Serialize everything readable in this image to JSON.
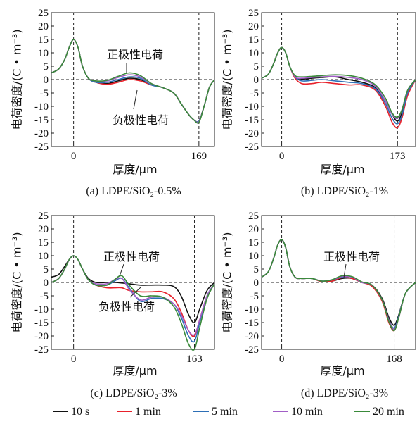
{
  "colors": {
    "10 s": "#111111",
    "1 min": "#e8212b",
    "5 min": "#2d6fb6",
    "10 min": "#a15ec6",
    "20 min": "#3a8a3a"
  },
  "legend": {
    "items": [
      "10 s",
      "1 min",
      "5 min",
      "10 min",
      "20 min"
    ],
    "placement": "bottom"
  },
  "chart_data": [
    {
      "type": "line",
      "caption": "(a)  LDPE/SiO₂-0.5%",
      "xlabel": "厚度/μm",
      "ylabel": "电荷密度/(C • m⁻³)",
      "ylim": [
        -25,
        25
      ],
      "yticks": [
        -25,
        -20,
        -15,
        -10,
        -5,
        0,
        5,
        10,
        15,
        20,
        25
      ],
      "xlim": [
        -30,
        190
      ],
      "xticks": [
        0,
        169
      ],
      "grid": false,
      "annotations": [
        "正极性电荷",
        "负极性电荷"
      ],
      "x": [
        -30,
        -20,
        -12,
        -6,
        0,
        6,
        12,
        20,
        30,
        45,
        60,
        75,
        90,
        105,
        120,
        135,
        145,
        155,
        162,
        169,
        176,
        183,
        190
      ],
      "series": [
        {
          "name": "10 s",
          "values": [
            2.5,
            4,
            7.5,
            12,
            15,
            12,
            5,
            0.5,
            -1,
            -1.5,
            -0.5,
            0.5,
            0,
            -2,
            -3,
            -5,
            -9,
            -13,
            -15,
            -15.5,
            -10,
            -3,
            0
          ]
        },
        {
          "name": "1 min",
          "values": [
            2.5,
            4,
            7.5,
            12,
            15,
            12,
            5,
            0.5,
            -1,
            -1.8,
            -1,
            0,
            -0.5,
            -2,
            -3,
            -5,
            -9,
            -13,
            -15,
            -15.5,
            -10,
            -3,
            0
          ]
        },
        {
          "name": "5 min",
          "values": [
            2.5,
            4,
            7.5,
            12,
            15,
            12,
            5,
            0.5,
            -1,
            -1,
            0,
            1,
            0.5,
            -2,
            -3,
            -5,
            -9,
            -13,
            -15,
            -15.5,
            -10,
            -3,
            0
          ]
        },
        {
          "name": "10 min",
          "values": [
            2.5,
            4,
            7.5,
            12,
            15,
            12,
            5,
            0.5,
            -0.5,
            -0.5,
            0.8,
            1.8,
            1,
            -1.5,
            -3,
            -5,
            -9,
            -13,
            -15,
            -15.8,
            -10,
            -3,
            0
          ]
        },
        {
          "name": "20 min",
          "values": [
            2.5,
            4,
            7.5,
            12,
            15,
            12,
            5,
            0.5,
            -0.5,
            -0.3,
            1.2,
            2.5,
            1.5,
            -1.5,
            -3,
            -5,
            -9,
            -13,
            -15,
            -16,
            -10,
            -3,
            0
          ]
        }
      ]
    },
    {
      "type": "line",
      "caption": "(b)  LDPE/SiO₂-1%",
      "xlabel": "厚度/μm",
      "ylabel": "电荷密度/(C • m⁻³)",
      "ylim": [
        -25,
        25
      ],
      "yticks": [
        -25,
        -20,
        -15,
        -10,
        -5,
        0,
        5,
        10,
        15,
        20,
        25
      ],
      "xlim": [
        -30,
        200
      ],
      "xticks": [
        0,
        173
      ],
      "grid": false,
      "annotations": [],
      "x": [
        -30,
        -20,
        -12,
        -6,
        0,
        6,
        12,
        20,
        30,
        45,
        60,
        80,
        100,
        120,
        140,
        155,
        165,
        173,
        180,
        188,
        200
      ],
      "series": [
        {
          "name": "10 s",
          "values": [
            0.5,
            2,
            6,
            10,
            12,
            10,
            5,
            1,
            0.2,
            0.5,
            0.8,
            1,
            0,
            -1,
            -3,
            -8,
            -13,
            -15.5,
            -12,
            -5,
            0
          ]
        },
        {
          "name": "1 min",
          "values": [
            0.5,
            2,
            6,
            10,
            12,
            10,
            5,
            0.5,
            -1.5,
            -1.5,
            -1,
            -1.5,
            -2,
            -2,
            -4,
            -10,
            -16,
            -18,
            -14,
            -6,
            0
          ]
        },
        {
          "name": "5 min",
          "values": [
            0.5,
            2,
            6,
            10,
            12,
            10,
            5,
            1,
            -0.5,
            -0.3,
            0,
            -0.5,
            -1,
            -1.5,
            -3.5,
            -9,
            -14.5,
            -16.5,
            -13,
            -5,
            0
          ]
        },
        {
          "name": "10 min",
          "values": [
            0.5,
            2,
            6,
            10,
            12,
            10,
            5,
            1,
            0.5,
            0.8,
            1,
            1.2,
            0.8,
            0,
            -2.5,
            -8,
            -13,
            -14.5,
            -11,
            -4,
            0
          ]
        },
        {
          "name": "20 min",
          "values": [
            0.5,
            2,
            6,
            10,
            12,
            10,
            5,
            1.5,
            1,
            1.2,
            1.5,
            1.8,
            1.5,
            0.5,
            -2,
            -7,
            -12.5,
            -14,
            -11,
            -4,
            0
          ]
        }
      ]
    },
    {
      "type": "line",
      "caption": "(c)  LDPE/SiO₂-3%",
      "xlabel": "厚度/μm",
      "ylabel": "电荷密度/(C • m⁻³)",
      "ylim": [
        -25,
        25
      ],
      "yticks": [
        -25,
        -20,
        -15,
        -10,
        -5,
        0,
        5,
        10,
        15,
        20,
        25
      ],
      "xlim": [
        -30,
        190
      ],
      "xticks": [
        0,
        163
      ],
      "grid": false,
      "annotations": [
        "正极性电荷",
        "负极性电荷"
      ],
      "x": [
        -30,
        -20,
        -12,
        -6,
        0,
        6,
        12,
        20,
        30,
        45,
        55,
        65,
        75,
        90,
        105,
        120,
        135,
        145,
        155,
        163,
        170,
        180,
        190
      ],
      "series": [
        {
          "name": "10 s",
          "values": [
            2,
            3,
            6,
            8.5,
            10,
            8.5,
            5,
            1.5,
            0,
            0,
            0,
            -0.2,
            -0.5,
            -1,
            -1,
            -1,
            -1.5,
            -5,
            -12,
            -15,
            -10,
            -3,
            0
          ]
        },
        {
          "name": "1 min",
          "values": [
            0,
            1.5,
            5,
            8.5,
            10,
            8.5,
            5,
            1,
            -1,
            -2,
            -2,
            -2,
            -3,
            -3.5,
            -3.5,
            -3.5,
            -6,
            -11,
            -18,
            -20,
            -14,
            -5,
            -0.5
          ]
        },
        {
          "name": "5 min",
          "values": [
            0,
            1.5,
            5,
            8.5,
            10,
            8.5,
            5,
            1,
            -1,
            -1,
            0.5,
            1.5,
            -2,
            -7,
            -6,
            -6,
            -8,
            -13,
            -20,
            -22,
            -15,
            -5,
            -0.5
          ]
        },
        {
          "name": "10 min",
          "values": [
            0,
            1.5,
            5,
            8.5,
            10,
            8.5,
            5,
            1,
            -0.5,
            -0.5,
            1,
            1.5,
            -2.5,
            -6.5,
            -5.5,
            -5.5,
            -8,
            -12,
            -18,
            -19.5,
            -14,
            -5,
            -0.5
          ]
        },
        {
          "name": "20 min",
          "values": [
            0,
            1.5,
            5,
            8.5,
            10,
            8.5,
            5,
            1,
            -1,
            -1,
            1,
            2.5,
            -1,
            -5,
            -5,
            -5.5,
            -9,
            -15,
            -23,
            -25,
            -17,
            -6,
            -0.5
          ]
        }
      ]
    },
    {
      "type": "line",
      "caption": "(d)  LDPE/SiO₂-3%",
      "xlabel": "厚度/μm",
      "ylabel": "电荷密度/(C • m⁻³)",
      "ylim": [
        -25,
        25
      ],
      "yticks": [
        -25,
        -20,
        -15,
        -10,
        -5,
        0,
        5,
        10,
        15,
        20,
        25
      ],
      "xlim": [
        -30,
        200
      ],
      "xticks": [
        0,
        168
      ],
      "grid": false,
      "annotations": [
        "正极性电荷"
      ],
      "x": [
        -30,
        -20,
        -12,
        -6,
        0,
        6,
        12,
        20,
        30,
        45,
        60,
        75,
        90,
        105,
        120,
        135,
        150,
        160,
        168,
        175,
        185,
        200
      ],
      "series": [
        {
          "name": "10 s",
          "values": [
            2,
            4,
            9,
            14,
            16,
            13,
            6,
            2,
            1.5,
            1.5,
            0.5,
            0.5,
            1.5,
            1.5,
            0,
            -1,
            -6,
            -13,
            -16,
            -12,
            -4,
            0
          ]
        },
        {
          "name": "1 min",
          "values": [
            2,
            4,
            9,
            14,
            16,
            13,
            6,
            2,
            1.5,
            1.5,
            0.3,
            0.5,
            1.8,
            1.5,
            0,
            -1.5,
            -7,
            -15,
            -18,
            -13,
            -4,
            0
          ]
        },
        {
          "name": "5 min",
          "values": [
            2,
            4,
            9,
            14,
            16,
            13,
            6,
            2,
            1.5,
            1.5,
            0.5,
            1,
            2,
            2,
            0,
            -1,
            -6.5,
            -14,
            -17,
            -12.5,
            -4,
            0
          ]
        },
        {
          "name": "10 min",
          "values": [
            2,
            4,
            9,
            14,
            16,
            13,
            6,
            2,
            1.5,
            1.5,
            0.5,
            1,
            2.2,
            2,
            0,
            -1,
            -6.5,
            -14,
            -17.5,
            -13,
            -4,
            0
          ]
        },
        {
          "name": "20 min",
          "values": [
            2,
            4,
            9,
            14,
            16,
            13,
            6,
            2,
            1.5,
            1.5,
            0.5,
            1,
            2.5,
            2.2,
            0.2,
            -1,
            -6.5,
            -14.5,
            -18,
            -13,
            -4,
            0
          ]
        }
      ]
    }
  ]
}
